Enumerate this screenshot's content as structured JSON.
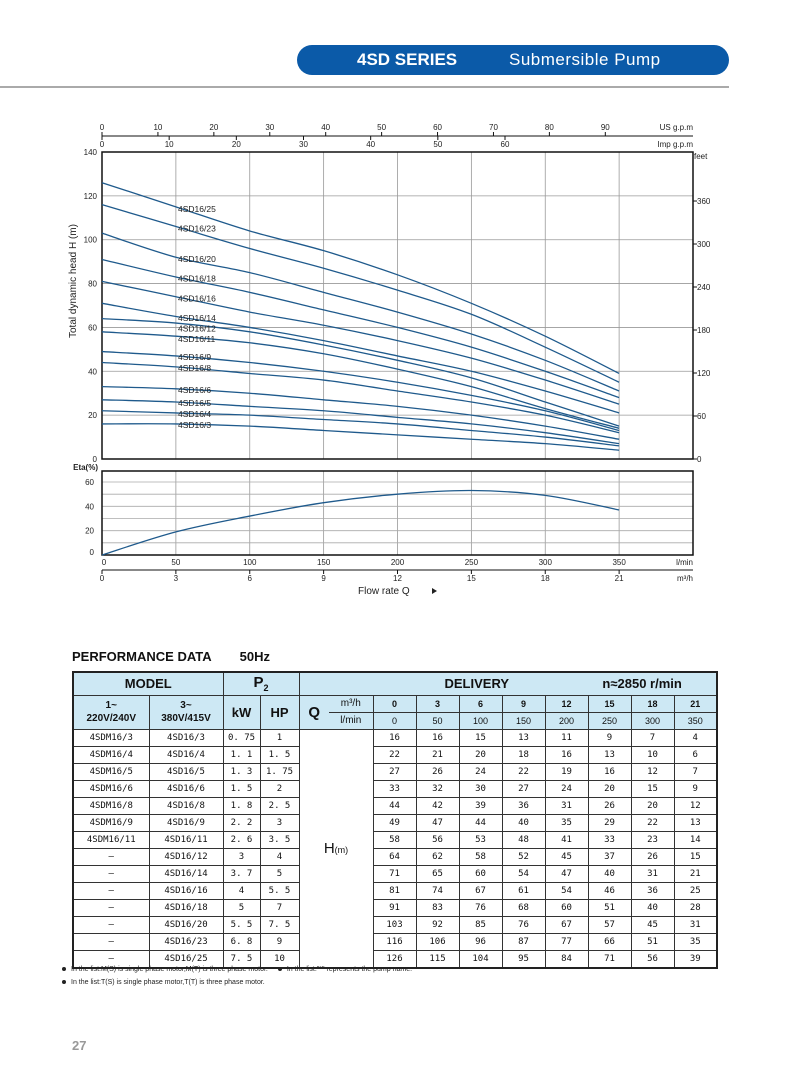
{
  "header": {
    "series": "4SD SERIES",
    "subtitle": "Submersible Pump",
    "color": "#0b5aa8"
  },
  "chart_data": [
    {
      "type": "line",
      "xlabel": "Flow rate Q",
      "x_units": "l/min",
      "x": [
        0,
        50,
        100,
        150,
        200,
        250,
        300,
        350
      ],
      "xlim": [
        0,
        400
      ],
      "xticks": [
        0,
        50,
        100,
        150,
        200,
        250,
        300,
        350
      ],
      "ylabel": "Total dynamic head H (m)",
      "ylim": [
        0,
        140
      ],
      "yticks": [
        0,
        20,
        40,
        60,
        80,
        100,
        120,
        140
      ],
      "right_axis": {
        "label": "feet",
        "ticks": [
          0,
          60,
          120,
          180,
          240,
          300,
          360
        ]
      },
      "top_axes": [
        {
          "label": "US g.p.m",
          "ticks": [
            0,
            10,
            20,
            30,
            40,
            50,
            60,
            70,
            80,
            90
          ]
        },
        {
          "label": "Imp g.p.m",
          "ticks": [
            0,
            10,
            20,
            30,
            40,
            50,
            60
          ]
        }
      ],
      "grid": true,
      "line_color": "#1f5a8c",
      "series": [
        {
          "name": "4SD16/25",
          "values": [
            126,
            115,
            104,
            95,
            84,
            71,
            56,
            39
          ]
        },
        {
          "name": "4SD16/23",
          "values": [
            116,
            106,
            96,
            87,
            77,
            66,
            51,
            35
          ]
        },
        {
          "name": "4SD16/20",
          "values": [
            103,
            92,
            85,
            76,
            67,
            57,
            45,
            31
          ]
        },
        {
          "name": "4SD16/18",
          "values": [
            91,
            83,
            76,
            68,
            60,
            51,
            40,
            28
          ]
        },
        {
          "name": "4SD16/16",
          "values": [
            81,
            74,
            67,
            61,
            54,
            46,
            36,
            25
          ]
        },
        {
          "name": "4SD16/14",
          "values": [
            71,
            65,
            60,
            54,
            47,
            40,
            31,
            21
          ]
        },
        {
          "name": "4SD16/12",
          "values": [
            64,
            62,
            58,
            52,
            45,
            37,
            26,
            15
          ]
        },
        {
          "name": "4SD16/11",
          "values": [
            58,
            56,
            53,
            48,
            41,
            33,
            23,
            14
          ]
        },
        {
          "name": "4SD16/9",
          "values": [
            49,
            47,
            44,
            40,
            35,
            29,
            22,
            13
          ]
        },
        {
          "name": "4SD16/8",
          "values": [
            44,
            42,
            39,
            36,
            31,
            26,
            20,
            12
          ]
        },
        {
          "name": "4SD16/6",
          "values": [
            33,
            32,
            30,
            27,
            24,
            20,
            15,
            9
          ]
        },
        {
          "name": "4SD16/5",
          "values": [
            27,
            26,
            24,
            22,
            19,
            16,
            12,
            7
          ]
        },
        {
          "name": "4SD16/4",
          "values": [
            22,
            21,
            20,
            18,
            16,
            13,
            10,
            6
          ]
        },
        {
          "name": "4SD16/3",
          "values": [
            16,
            16,
            15,
            13,
            11,
            9,
            7,
            4
          ]
        }
      ]
    },
    {
      "type": "line",
      "ylabel": "Eta(%)",
      "ylim": [
        0,
        69
      ],
      "yticks": [
        0,
        20,
        40,
        60
      ],
      "x": [
        0,
        50,
        100,
        150,
        200,
        250,
        300,
        350
      ],
      "xlim": [
        0,
        400
      ],
      "x_units": "l/min",
      "xticks": [
        0,
        50,
        100,
        150,
        200,
        250,
        300,
        350
      ],
      "second_x_units": "m³/h",
      "second_xticks": [
        0,
        3,
        6,
        9,
        12,
        15,
        18,
        21
      ],
      "xlabel": "Flow rate Q",
      "grid": true,
      "line_color": "#1f5a8c",
      "values": [
        0,
        19,
        32,
        43,
        50,
        53,
        49,
        37
      ]
    }
  ],
  "performance": {
    "title": "PERFORMANCE  DATA",
    "freq": "50Hz",
    "model_label": "MODEL",
    "p2_label": "P",
    "p2_sub": "2",
    "delivery_label": "DELIVERY",
    "speed_label": "n≈2850 r/min",
    "single_phase": "1~",
    "single_voltage": "220V/240V",
    "three_phase": "3~",
    "three_voltage": "380V/415V",
    "kw_label": "kW",
    "hp_label": "HP",
    "q_label": "Q",
    "unit_m3h": "m³/h",
    "unit_lmin": "l/min",
    "h_label": "H",
    "h_unit": "(m)",
    "q_m3h": [
      "0",
      "3",
      "6",
      "9",
      "12",
      "15",
      "18",
      "21"
    ],
    "q_lmin": [
      "0",
      "50",
      "100",
      "150",
      "200",
      "250",
      "300",
      "350"
    ],
    "rows": [
      {
        "single": "4SDM16/3",
        "three": "4SD16/3",
        "kw": "0. 75",
        "hp": "1",
        "h": [
          "16",
          "16",
          "15",
          "13",
          "11",
          "9",
          "7",
          "4"
        ]
      },
      {
        "single": "4SDM16/4",
        "three": "4SD16/4",
        "kw": "1. 1",
        "hp": "1. 5",
        "h": [
          "22",
          "21",
          "20",
          "18",
          "16",
          "13",
          "10",
          "6"
        ]
      },
      {
        "single": "4SDM16/5",
        "three": "4SD16/5",
        "kw": "1. 3",
        "hp": "1. 75",
        "h": [
          "27",
          "26",
          "24",
          "22",
          "19",
          "16",
          "12",
          "7"
        ]
      },
      {
        "single": "4SDM16/6",
        "three": "4SD16/6",
        "kw": "1. 5",
        "hp": "2",
        "h": [
          "33",
          "32",
          "30",
          "27",
          "24",
          "20",
          "15",
          "9"
        ]
      },
      {
        "single": "4SDM16/8",
        "three": "4SD16/8",
        "kw": "1. 8",
        "hp": "2. 5",
        "h": [
          "44",
          "42",
          "39",
          "36",
          "31",
          "26",
          "20",
          "12"
        ]
      },
      {
        "single": "4SDM16/9",
        "three": "4SD16/9",
        "kw": "2. 2",
        "hp": "3",
        "h": [
          "49",
          "47",
          "44",
          "40",
          "35",
          "29",
          "22",
          "13"
        ]
      },
      {
        "single": "4SDM16/11",
        "three": "4SD16/11",
        "kw": "2. 6",
        "hp": "3. 5",
        "h": [
          "58",
          "56",
          "53",
          "48",
          "41",
          "33",
          "23",
          "14"
        ]
      },
      {
        "single": "–",
        "three": "4SD16/12",
        "kw": "3",
        "hp": "4",
        "h": [
          "64",
          "62",
          "58",
          "52",
          "45",
          "37",
          "26",
          "15"
        ]
      },
      {
        "single": "–",
        "three": "4SD16/14",
        "kw": "3. 7",
        "hp": "5",
        "h": [
          "71",
          "65",
          "60",
          "54",
          "47",
          "40",
          "31",
          "21"
        ]
      },
      {
        "single": "–",
        "three": "4SD16/16",
        "kw": "4",
        "hp": "5. 5",
        "h": [
          "81",
          "74",
          "67",
          "61",
          "54",
          "46",
          "36",
          "25"
        ]
      },
      {
        "single": "–",
        "three": "4SD16/18",
        "kw": "5",
        "hp": "7",
        "h": [
          "91",
          "83",
          "76",
          "68",
          "60",
          "51",
          "40",
          "28"
        ]
      },
      {
        "single": "–",
        "three": "4SD16/20",
        "kw": "5. 5",
        "hp": "7. 5",
        "h": [
          "103",
          "92",
          "85",
          "76",
          "67",
          "57",
          "45",
          "31"
        ]
      },
      {
        "single": "–",
        "three": "4SD16/23",
        "kw": "6. 8",
        "hp": "9",
        "h": [
          "116",
          "106",
          "96",
          "87",
          "77",
          "66",
          "51",
          "35"
        ]
      },
      {
        "single": "–",
        "three": "4SD16/25",
        "kw": "7. 5",
        "hp": "10",
        "h": [
          "126",
          "115",
          "104",
          "95",
          "84",
          "71",
          "56",
          "39"
        ]
      }
    ],
    "header_bg": "#cde8f4"
  },
  "notes": [
    "In the list:M(S) is single phase motor,M(T) is three phase motor.",
    "In the list:\"*\" represents the pump name.",
    "In the list:T(S) is single phase motor,T(T) is three phase motor."
  ],
  "page_number": "27"
}
